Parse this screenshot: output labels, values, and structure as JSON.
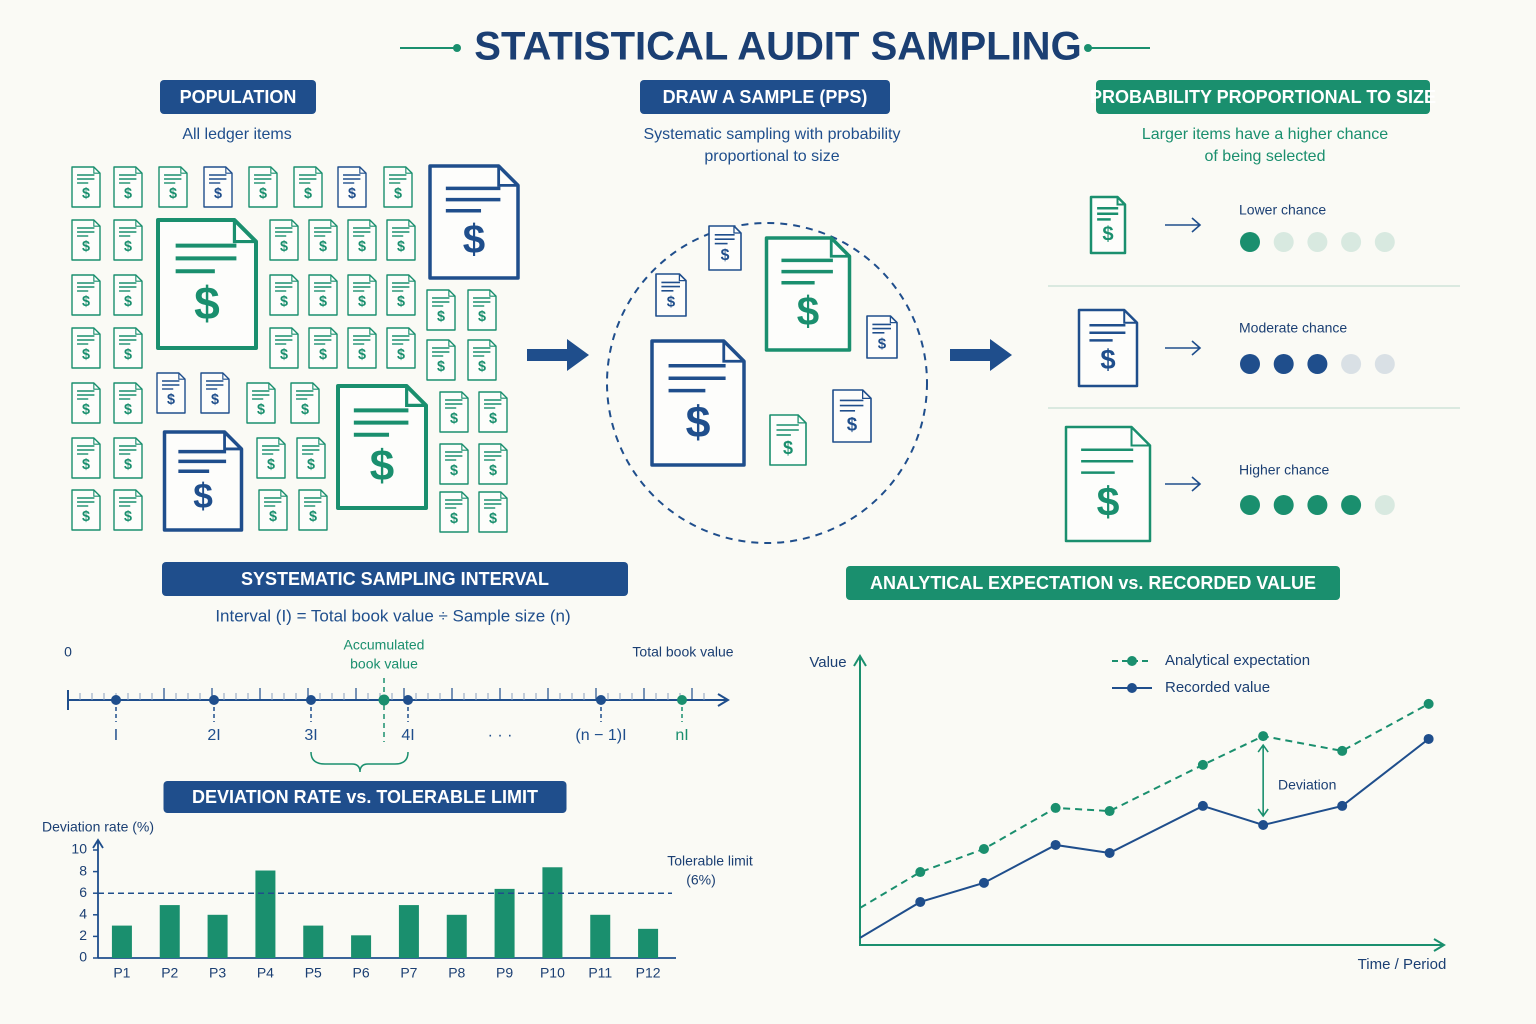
{
  "title": "STATISTICAL AUDIT SAMPLING",
  "currency_symbol": "$",
  "population": {
    "label": "POPULATION",
    "caption": "All ledger items"
  },
  "sample": {
    "label": "DRAW A SAMPLE (PPS)",
    "caption": [
      "Systematic sampling with probability",
      "proportional to size"
    ]
  },
  "pps": {
    "label": "PROBABILITY PROPORTIONAL TO SIZE",
    "caption": [
      "Larger items have a higher chance",
      "of being selected"
    ],
    "rows": [
      {
        "label": "Lower chance",
        "filled": 1,
        "total": 5,
        "color": "#1a8f6e"
      },
      {
        "label": "Moderate chance",
        "filled": 3,
        "total": 5,
        "color": "#1f4e8c"
      },
      {
        "label": "Higher chance",
        "filled": 4,
        "total": 5,
        "color": "#1a8f6e"
      }
    ]
  },
  "interval": {
    "label": "SYSTEMATIC SAMPLING INTERVAL",
    "formula": "Interval (I) = Total book value ÷ Sample size (n)",
    "origin": 0,
    "accumulated_label": [
      "Accumulated",
      "book value"
    ],
    "total_label": "Total book value",
    "marks": [
      "I",
      "2I",
      "3I",
      "4I",
      "· · ·",
      "(n − 1)I",
      "nI"
    ]
  },
  "chart_data": [
    {
      "type": "bar",
      "title": "DEVIATION RATE vs. TOLERABLE LIMIT",
      "y_label": "Deviation rate (%)",
      "categories": [
        "P1",
        "P2",
        "P3",
        "P4",
        "P5",
        "P6",
        "P7",
        "P8",
        "P9",
        "P10",
        "P11",
        "P12"
      ],
      "values": [
        3,
        4.9,
        4,
        8.1,
        3,
        2.1,
        4.9,
        4,
        6.4,
        8.4,
        4,
        2.7
      ],
      "color": "#1a8f6e",
      "ylim": [
        0,
        10
      ],
      "yticks": [
        0,
        2,
        4,
        6,
        8,
        10
      ],
      "threshold": {
        "value": 6,
        "label": [
          "Tolerable limit",
          "(6%)"
        ]
      }
    },
    {
      "type": "line",
      "title": "ANALYTICAL EXPECTATION vs. RECORDED VALUE",
      "x_label": "Time / Period",
      "y_label": "Value",
      "x": [
        0,
        1.06,
        2.18,
        3.44,
        4.39,
        6.03,
        7.09,
        8.48,
        10
      ],
      "xlim": [
        0,
        10.2
      ],
      "ylim": [
        0,
        100
      ],
      "series": [
        {
          "name": "Analytical expectation",
          "color": "#1a8f6e",
          "dashed": true,
          "values": [
            13,
            25.6,
            33.7,
            48.1,
            47,
            63.2,
            73.3,
            68.1,
            84.6
          ]
        },
        {
          "name": "Recorded value",
          "color": "#1f4e8c",
          "dashed": false,
          "values": [
            2.5,
            15.1,
            21.8,
            35.1,
            32.3,
            48.8,
            42.1,
            48.8,
            72.3
          ]
        }
      ],
      "annotation": "Deviation"
    }
  ]
}
